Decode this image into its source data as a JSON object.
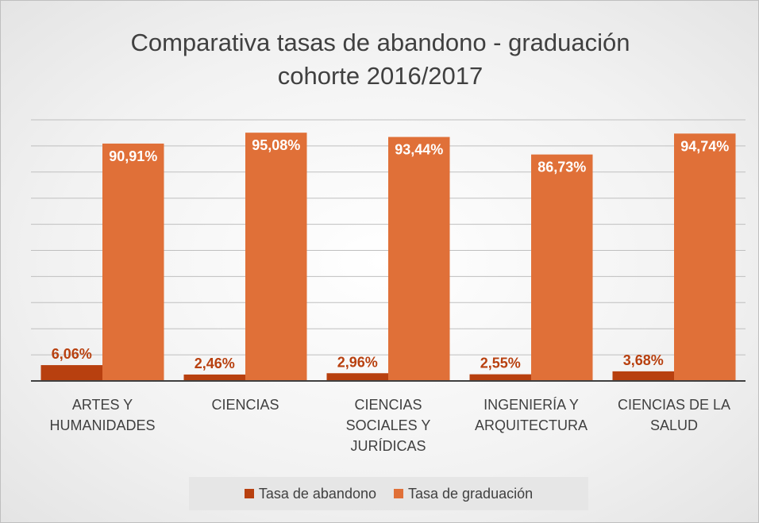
{
  "chart_data": {
    "type": "bar",
    "title": "Comparativa tasas de abandono - graduación cohorte 2016/2017",
    "categories": [
      "ARTES Y HUMANIDADES",
      "CIENCIAS",
      "CIENCIAS SOCIALES Y JURÍDICAS",
      "INGENIERÍA Y ARQUITECTURA",
      "CIENCIAS DE LA SALUD"
    ],
    "series": [
      {
        "name": "Tasa de abandono",
        "color": "#b8400f",
        "values": [
          6.06,
          2.46,
          2.96,
          2.55,
          3.68
        ],
        "value_labels": [
          "6,06%",
          "2,46%",
          "2,96%",
          "2,55%",
          "3,68%"
        ]
      },
      {
        "name": "Tasa de graduación",
        "color": "#e07038",
        "values": [
          90.91,
          95.08,
          93.44,
          86.73,
          94.74
        ],
        "value_labels": [
          "90,91%",
          "95,08%",
          "93,44%",
          "86,73%",
          "94,74%"
        ]
      }
    ],
    "ylim": [
      0,
      100
    ],
    "yticks": [
      0,
      10,
      20,
      30,
      40,
      50,
      60,
      70,
      80,
      90,
      100
    ],
    "grid": true,
    "legend": "bottom"
  }
}
